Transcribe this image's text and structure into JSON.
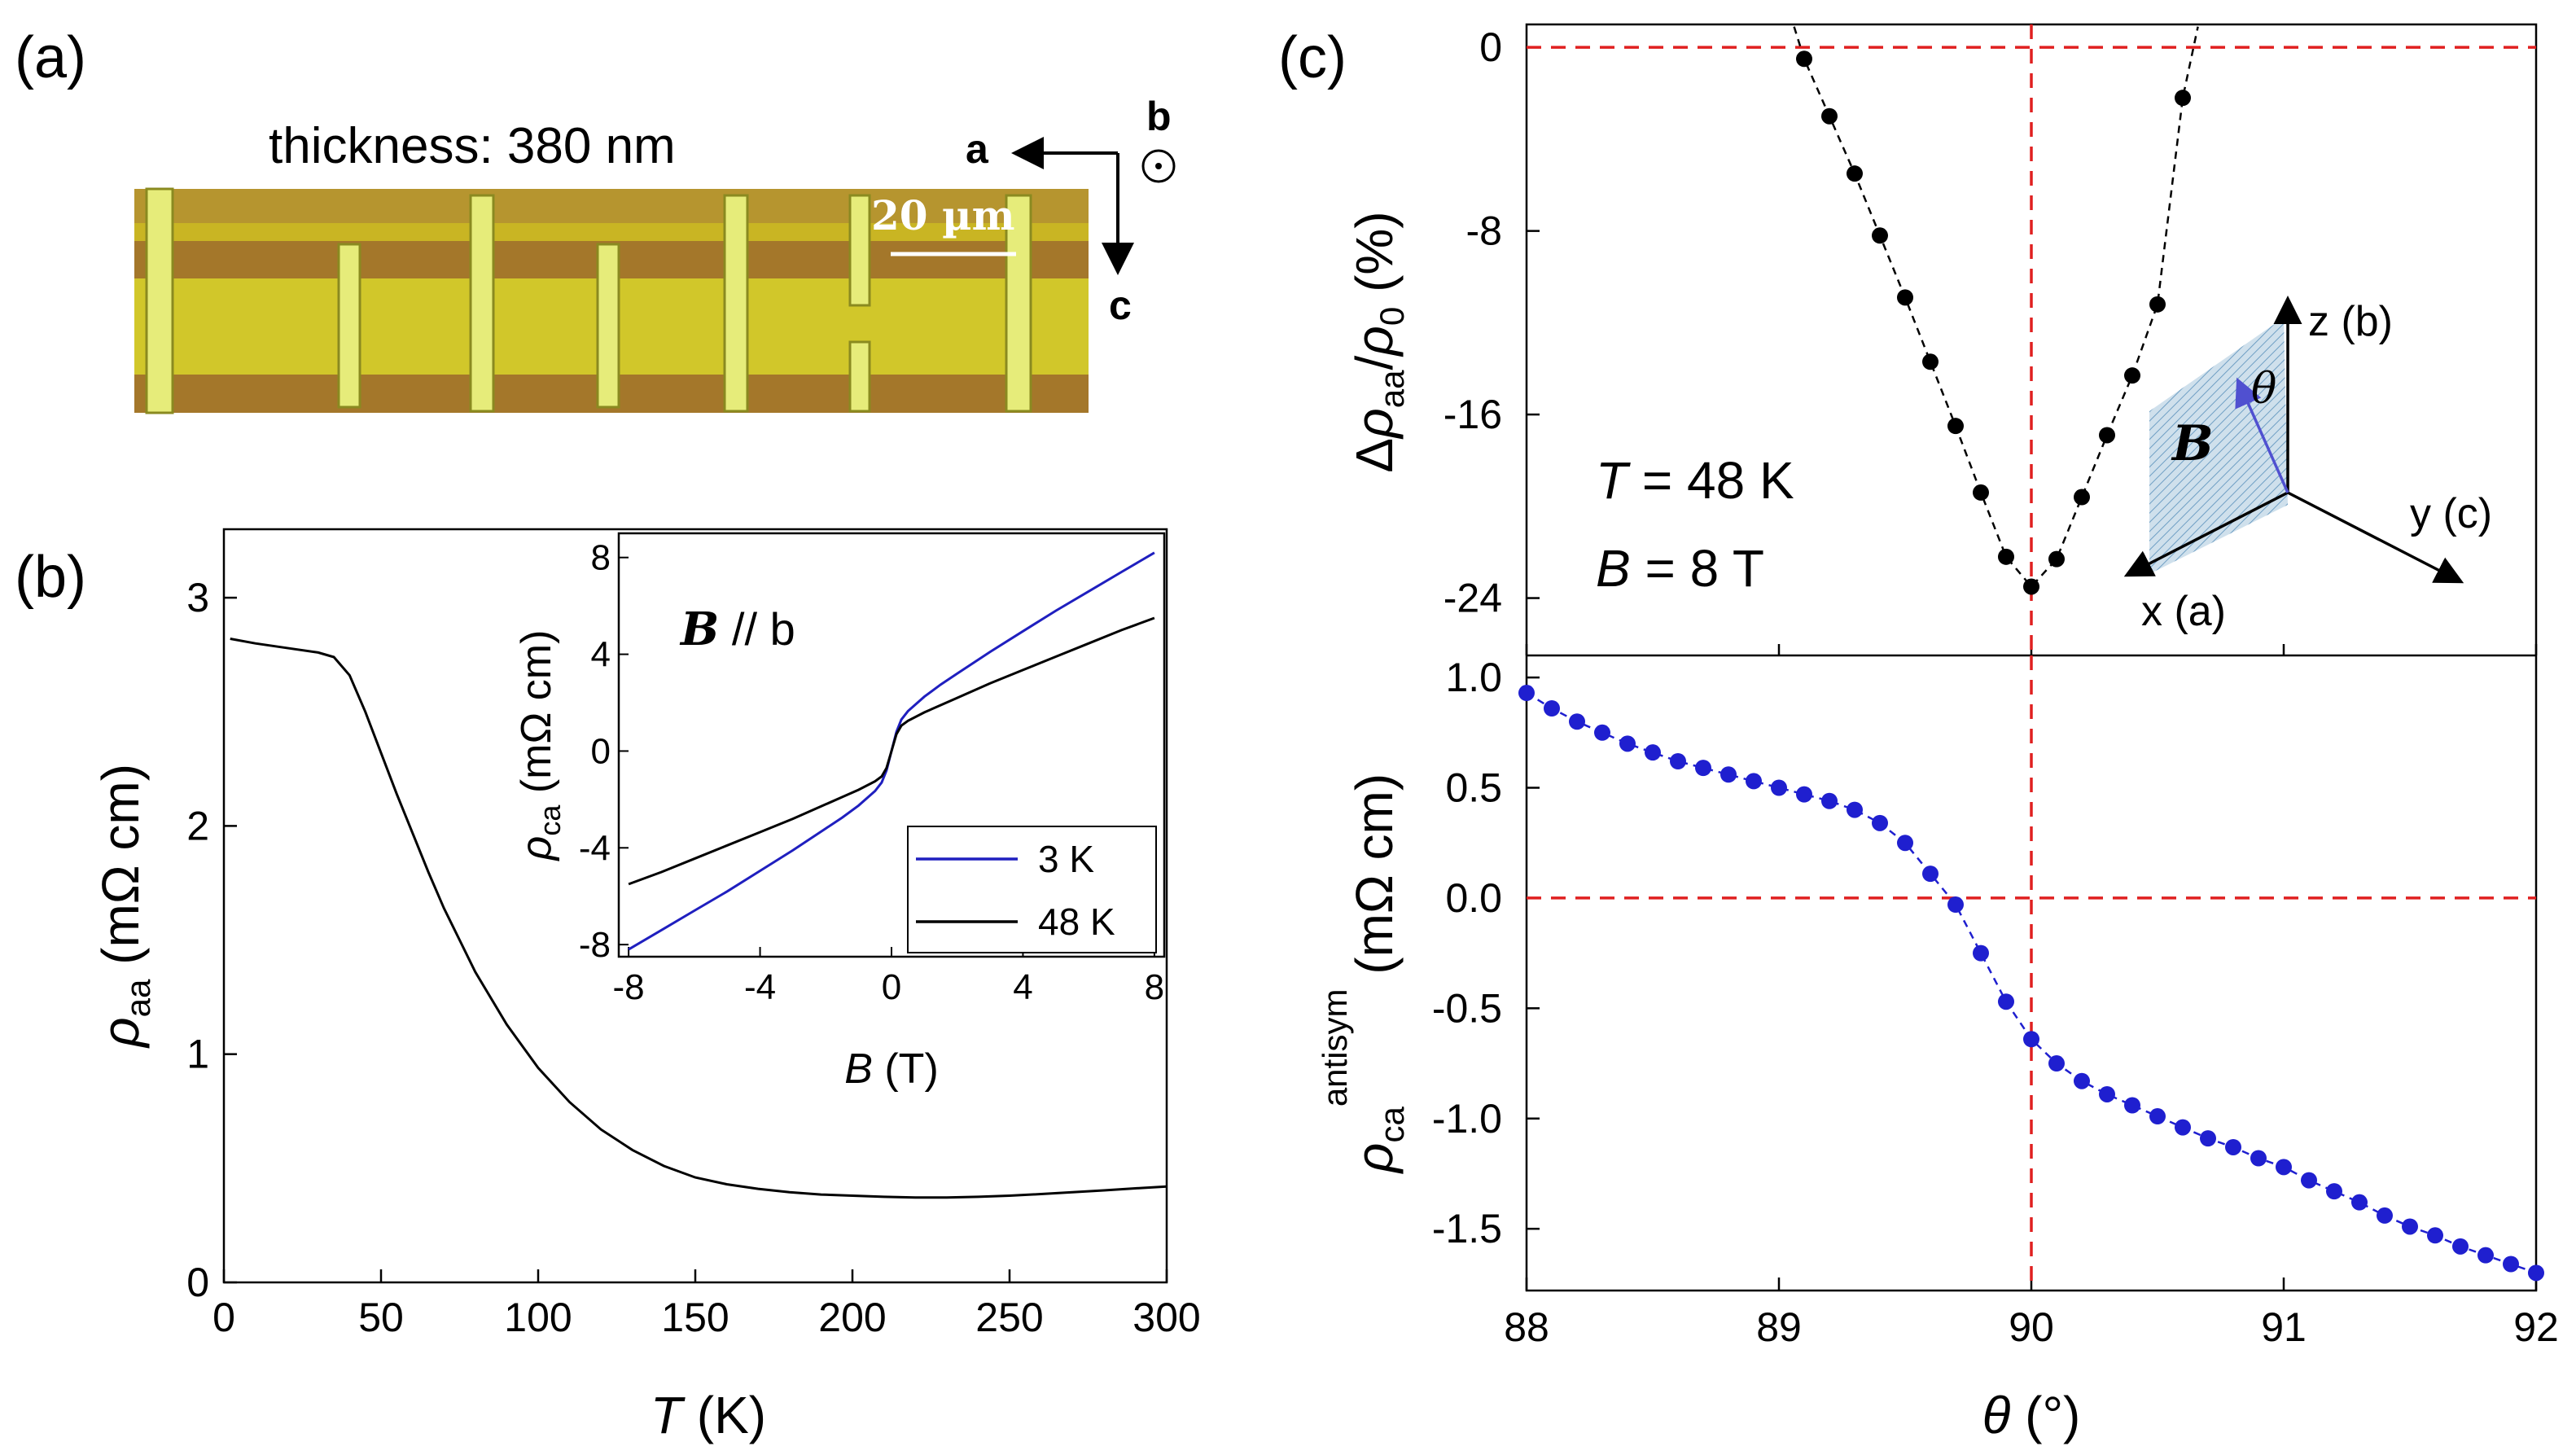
{
  "panels": {
    "a": {
      "label": "(a)",
      "thickness": "thickness: 380 nm",
      "scalebar": "20 µm",
      "axis_a": "a",
      "axis_b": "b",
      "axis_c": "c",
      "colors": {
        "flake": "#cfc126",
        "stripe": "#a4772a",
        "electrode": "#e6ec7a"
      }
    },
    "b": {
      "label": "(b)"
    },
    "c": {
      "label": "(c)"
    }
  },
  "chart_data": [
    {
      "id": "b-main",
      "type": "line",
      "xlabel": "T (K)",
      "ylabel": "ρaa (mΩ cm)",
      "xlim": [
        0,
        300
      ],
      "ylim": [
        0,
        3.3
      ],
      "xticks": [
        "0",
        "50",
        "100",
        "150",
        "200",
        "250",
        "300"
      ],
      "yticks": [
        "0",
        "1",
        "2",
        "3"
      ],
      "series": [
        {
          "color": "#000000",
          "x": [
            2,
            10,
            20,
            30,
            35,
            40,
            45,
            50,
            55,
            60,
            65,
            70,
            75,
            80,
            90,
            100,
            110,
            120,
            130,
            140,
            150,
            160,
            170,
            180,
            190,
            200,
            210,
            220,
            230,
            240,
            250,
            260,
            270,
            280,
            290,
            300
          ],
          "y": [
            2.82,
            2.8,
            2.78,
            2.76,
            2.74,
            2.66,
            2.5,
            2.32,
            2.14,
            1.97,
            1.8,
            1.64,
            1.5,
            1.36,
            1.13,
            0.94,
            0.79,
            0.67,
            0.58,
            0.51,
            0.46,
            0.43,
            0.41,
            0.395,
            0.385,
            0.38,
            0.375,
            0.372,
            0.372,
            0.375,
            0.38,
            0.387,
            0.395,
            0.403,
            0.412,
            0.42
          ]
        }
      ]
    },
    {
      "id": "b-inset",
      "type": "line",
      "title": "B // b",
      "xlabel": "B (T)",
      "ylabel": "ρca (mΩ cm)",
      "xlim": [
        -8.3,
        8.3
      ],
      "ylim": [
        -8.5,
        9
      ],
      "xticks": [
        "-8",
        "-4",
        "0",
        "4",
        "8"
      ],
      "yticks": [
        "-8",
        "-4",
        "0",
        "4",
        "8"
      ],
      "legend_position": "bottom-right",
      "series": [
        {
          "name": "3 K",
          "color": "#1f1fbf",
          "x": [
            -8,
            -7,
            -6,
            -5,
            -4,
            -3,
            -2,
            -1.5,
            -1,
            -0.5,
            -0.3,
            -0.15,
            0,
            0.15,
            0.3,
            0.5,
            1,
            1.5,
            2,
            3,
            4,
            5,
            6,
            7,
            8
          ],
          "y": [
            -8.2,
            -7.4,
            -6.6,
            -5.8,
            -4.95,
            -4.1,
            -3.2,
            -2.75,
            -2.25,
            -1.65,
            -1.3,
            -0.8,
            0,
            0.8,
            1.3,
            1.65,
            2.25,
            2.75,
            3.2,
            4.1,
            4.95,
            5.8,
            6.6,
            7.4,
            8.2
          ]
        },
        {
          "name": "48 K",
          "color": "#000000",
          "x": [
            -8,
            -7,
            -6,
            -5,
            -4,
            -3,
            -2,
            -1.5,
            -1,
            -0.5,
            -0.3,
            -0.15,
            0,
            0.15,
            0.3,
            0.5,
            1,
            1.5,
            2,
            3,
            4,
            5,
            6,
            7,
            8
          ],
          "y": [
            -5.5,
            -5.0,
            -4.45,
            -3.9,
            -3.35,
            -2.8,
            -2.2,
            -1.9,
            -1.6,
            -1.25,
            -1.05,
            -0.7,
            0,
            0.7,
            1.05,
            1.25,
            1.6,
            1.9,
            2.2,
            2.8,
            3.35,
            3.9,
            4.45,
            5.0,
            5.5
          ]
        }
      ]
    },
    {
      "id": "c-top",
      "type": "scatter",
      "ylabel": "Δρaa/ρ0 (%)",
      "annotation_T": "T = 48 K",
      "annotation_B": "B = 8 T",
      "xlim": [
        88,
        92
      ],
      "ylim": [
        -26.5,
        1
      ],
      "yticks": [
        "0",
        "-8",
        "-16",
        "-24"
      ],
      "series": [
        {
          "color": "#000000",
          "x": [
            89.1,
            89.2,
            89.3,
            89.4,
            89.5,
            89.6,
            89.7,
            89.8,
            89.9,
            90.0,
            90.1,
            90.2,
            90.3,
            90.4,
            90.5,
            90.6
          ],
          "y": [
            -0.5,
            -3.0,
            -5.5,
            -8.2,
            -10.9,
            -13.7,
            -16.5,
            -19.4,
            -22.2,
            -23.5,
            -22.3,
            -19.6,
            -16.9,
            -14.3,
            -11.2,
            -2.2
          ]
        }
      ],
      "ref_lines": {
        "x": 90,
        "y": 0,
        "color": "#e02020"
      },
      "inset": {
        "x_axis": "x (a)",
        "y_axis": "y (c)",
        "z_axis": "z (b)",
        "angle": "θ",
        "field": "B"
      }
    },
    {
      "id": "c-bottom",
      "type": "scatter",
      "xlabel": "θ (°)",
      "ylabel": "ρca antisym (mΩ cm)",
      "xlim": [
        88,
        92
      ],
      "ylim": [
        -1.78,
        1.1
      ],
      "xticks": [
        "88",
        "89",
        "90",
        "91",
        "92"
      ],
      "yticks": [
        "1.0",
        "0.5",
        "0.0",
        "-0.5",
        "-1.0",
        "-1.5"
      ],
      "series": [
        {
          "color": "#1f1fcf",
          "x": [
            88.0,
            88.1,
            88.2,
            88.3,
            88.4,
            88.5,
            88.6,
            88.7,
            88.8,
            88.9,
            89.0,
            89.1,
            89.2,
            89.3,
            89.4,
            89.5,
            89.6,
            89.7,
            89.8,
            89.9,
            90.0,
            90.1,
            90.2,
            90.3,
            90.4,
            90.5,
            90.6,
            90.7,
            90.8,
            90.9,
            91.0,
            91.1,
            91.2,
            91.3,
            91.4,
            91.5,
            91.6,
            91.7,
            91.8,
            91.9,
            92.0
          ],
          "y": [
            0.93,
            0.86,
            0.8,
            0.75,
            0.7,
            0.66,
            0.62,
            0.59,
            0.56,
            0.53,
            0.5,
            0.47,
            0.44,
            0.4,
            0.34,
            0.25,
            0.11,
            -0.03,
            -0.25,
            -0.47,
            -0.64,
            -0.75,
            -0.83,
            -0.89,
            -0.94,
            -0.99,
            -1.04,
            -1.09,
            -1.13,
            -1.18,
            -1.22,
            -1.28,
            -1.33,
            -1.38,
            -1.44,
            -1.49,
            -1.53,
            -1.58,
            -1.62,
            -1.66,
            -1.7
          ]
        }
      ],
      "ref_lines": {
        "x": 90,
        "y": 0,
        "color": "#e02020"
      }
    }
  ]
}
